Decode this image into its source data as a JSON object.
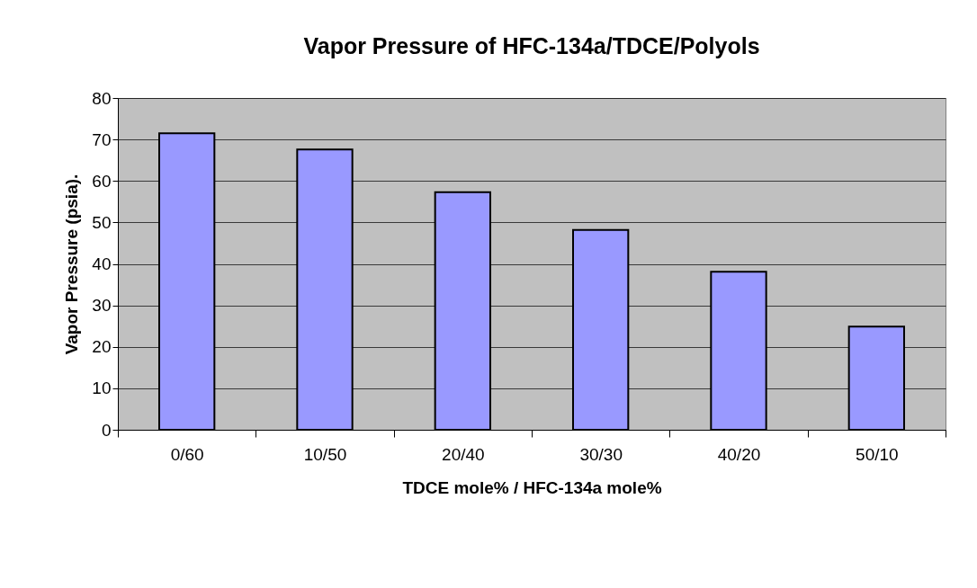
{
  "chart_data": {
    "type": "bar",
    "title": "Vapor Pressure of HFC-134a/TDCE/Polyols",
    "xlabel": "TDCE mole% / HFC-134a mole%",
    "ylabel": "Vapor Pressure (psia).",
    "categories": [
      "0/60",
      "10/50",
      "20/40",
      "30/30",
      "40/20",
      "50/10"
    ],
    "values": [
      71.5,
      67.6,
      57.3,
      48.2,
      38.1,
      24.9
    ],
    "color": "#9999ff",
    "ylim": [
      0,
      80
    ],
    "yticks": [
      0,
      10,
      20,
      30,
      40,
      50,
      60,
      70,
      80
    ],
    "grid": "y"
  }
}
